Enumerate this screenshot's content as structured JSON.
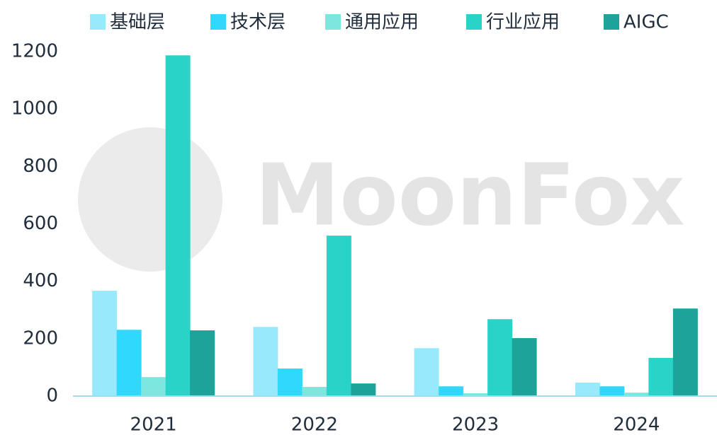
{
  "chart_data": {
    "type": "bar",
    "watermark": "MoonFox",
    "categories": [
      "2021",
      "2022",
      "2023",
      "2024"
    ],
    "series": [
      {
        "name": "基础层",
        "color": "#99e9fc",
        "values": [
          367,
          241,
          167,
          47
        ]
      },
      {
        "name": "技术层",
        "color": "#2fd8fc",
        "values": [
          231,
          96,
          34,
          34
        ]
      },
      {
        "name": "通用应用",
        "color": "#7de6dd",
        "values": [
          66,
          32,
          10,
          12
        ]
      },
      {
        "name": "行业应用",
        "color": "#29d3c7",
        "values": [
          1187,
          559,
          268,
          133
        ]
      },
      {
        "name": "AIGC",
        "color": "#1da39a",
        "values": [
          229,
          44,
          202,
          305
        ]
      }
    ],
    "ylim": [
      0,
      1200
    ],
    "yticks": [
      0,
      200,
      400,
      600,
      800,
      1000,
      1200
    ],
    "grid": false
  }
}
